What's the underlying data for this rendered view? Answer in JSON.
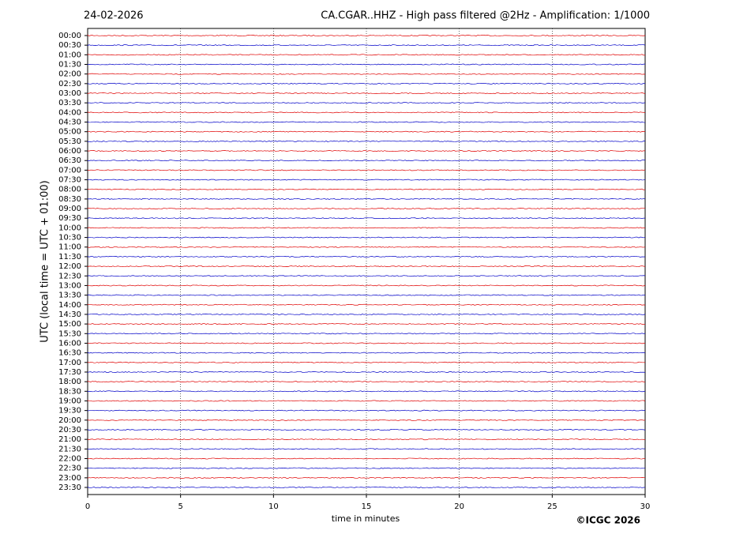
{
  "chart_data": {
    "type": "helicorder",
    "date": "24-02-2026",
    "title": "CA.CGAR..HHZ - High pass filtered @2Hz - Amplification: 1/1000",
    "x_label": "time in minutes",
    "y_label": "UTC (local time = UTC + 01:00)",
    "copyright": "©ICGC 2026",
    "categories": [
      "00:00",
      "00:30",
      "01:00",
      "01:30",
      "02:00",
      "02:30",
      "03:00",
      "03:30",
      "04:00",
      "04:30",
      "05:00",
      "05:30",
      "06:00",
      "06:30",
      "07:00",
      "07:30",
      "08:00",
      "08:30",
      "09:00",
      "09:30",
      "10:00",
      "10:30",
      "11:00",
      "11:30",
      "12:00",
      "12:30",
      "13:00",
      "13:30",
      "14:00",
      "14:30",
      "15:00",
      "15:30",
      "16:00",
      "16:30",
      "17:00",
      "17:30",
      "18:00",
      "18:30",
      "19:00",
      "19:30",
      "20:00",
      "20:30",
      "21:00",
      "21:30",
      "22:00",
      "22:30",
      "23:00",
      "23:30"
    ],
    "trace_colors": [
      "#e00000",
      "#0000c8"
    ],
    "xlim": [
      0,
      30
    ],
    "xticks": [
      0,
      5,
      10,
      15,
      20,
      25,
      30
    ],
    "grid": true
  }
}
